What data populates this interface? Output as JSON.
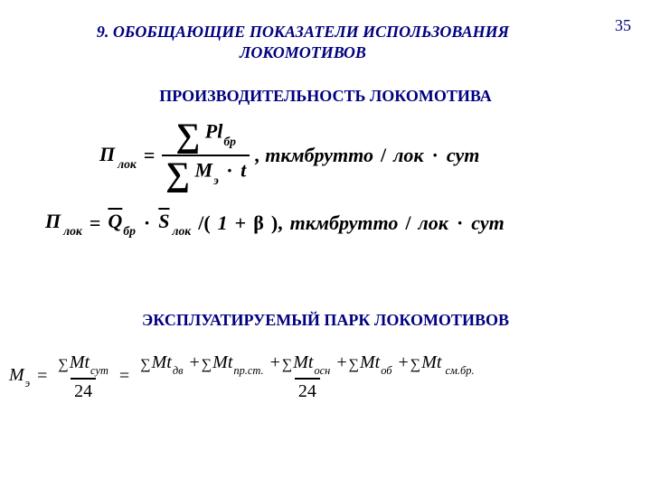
{
  "pageNumber": "35",
  "sectionTitle": "9. ОБОБЩАЮЩИЕ   ПОКАЗАТЕЛИ   ИСПОЛЬЗОВАНИЯ ЛОКОМОТИВОВ",
  "colors": {
    "heading": "#000080",
    "text": "#000000",
    "background": "#ffffff"
  },
  "subtitle1": "ПРОИЗВОДИТЕЛЬНОСТЬ ЛОКОМОТИВА",
  "subtitle2": "ЭКСПЛУАТИРУЕМЫЙ  ПАРК ЛОКОМОТИВОВ",
  "formula1": {
    "lhs_base": "П",
    "lhs_sub": "лок",
    "num_pl": "Pl",
    "num_pl_sub": "бр",
    "den_M": "M",
    "den_M_sub": "э",
    "den_t": "t",
    "units_pre": ", ткмбрутто",
    "slash": "/",
    "units_post1": "лок",
    "units_post2": "сут"
  },
  "formula2": {
    "lhs_base": "П",
    "lhs_sub": "лок",
    "Q": "Q",
    "Q_sub": "бр",
    "S": "S",
    "S_sub": "лок",
    "div": "/(",
    "one": "1",
    "plus": "+",
    "beta": "β",
    "close": "),",
    "units_pre": "ткмбрутто",
    "slash": "/",
    "units_post1": "лок",
    "units_post2": "сут"
  },
  "formula3": {
    "M": "M",
    "M_sub": "э",
    "Mt": "Mt",
    "sub_sut": "сут",
    "den24": "24",
    "sub_dv": "дв",
    "sub_prst": "пр.ст.",
    "sub_osn": "осн",
    "sub_ob": "об",
    "sub_smbr": "см.бр."
  }
}
